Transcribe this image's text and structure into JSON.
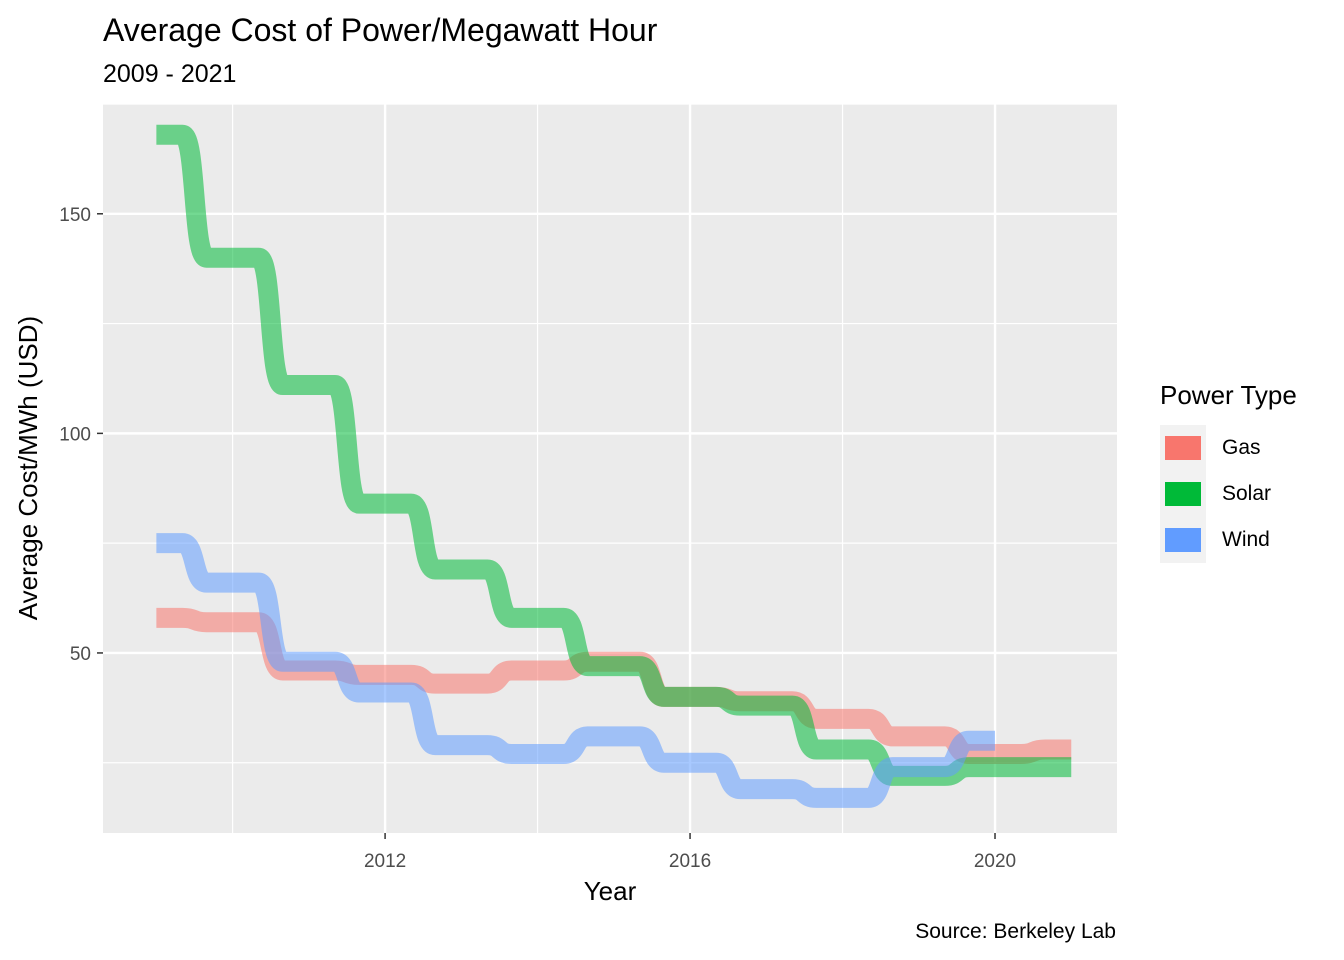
{
  "chart_data": {
    "type": "line",
    "title": "Average Cost of Power/Megawatt Hour",
    "subtitle": "2009 - 2021",
    "caption": "Source: Berkeley Lab",
    "xlabel": "Year",
    "ylabel": "Average Cost/MWh (USD)",
    "xlim": [
      2008.3,
      2021.6
    ],
    "ylim": [
      9,
      175
    ],
    "x_ticks": [
      2012,
      2016,
      2020
    ],
    "y_ticks": [
      50,
      100,
      150
    ],
    "grid": true,
    "legend": {
      "title": "Power Type",
      "position": "right"
    },
    "series": [
      {
        "name": "Gas",
        "color": "#F8766D",
        "x": [
          2009,
          2010,
          2011,
          2012,
          2013,
          2014,
          2015,
          2016,
          2017,
          2018,
          2019,
          2020,
          2021
        ],
        "values": [
          58,
          57,
          46,
          45,
          43,
          46,
          48,
          40,
          39,
          35,
          31,
          27,
          28
        ]
      },
      {
        "name": "Solar",
        "color": "#00BA38",
        "x": [
          2009,
          2010,
          2011,
          2012,
          2013,
          2014,
          2015,
          2016,
          2017,
          2018,
          2019,
          2020,
          2021
        ],
        "values": [
          168,
          140,
          111,
          84,
          69,
          58,
          47,
          40,
          38,
          28,
          22,
          24,
          24
        ]
      },
      {
        "name": "Wind",
        "color": "#619CFF",
        "x": [
          2009,
          2010,
          2011,
          2012,
          2013,
          2014,
          2015,
          2016,
          2017,
          2018,
          2019,
          2020
        ],
        "values": [
          75,
          66,
          48,
          41,
          29,
          27,
          31,
          25,
          19,
          17,
          24,
          30
        ]
      }
    ]
  }
}
